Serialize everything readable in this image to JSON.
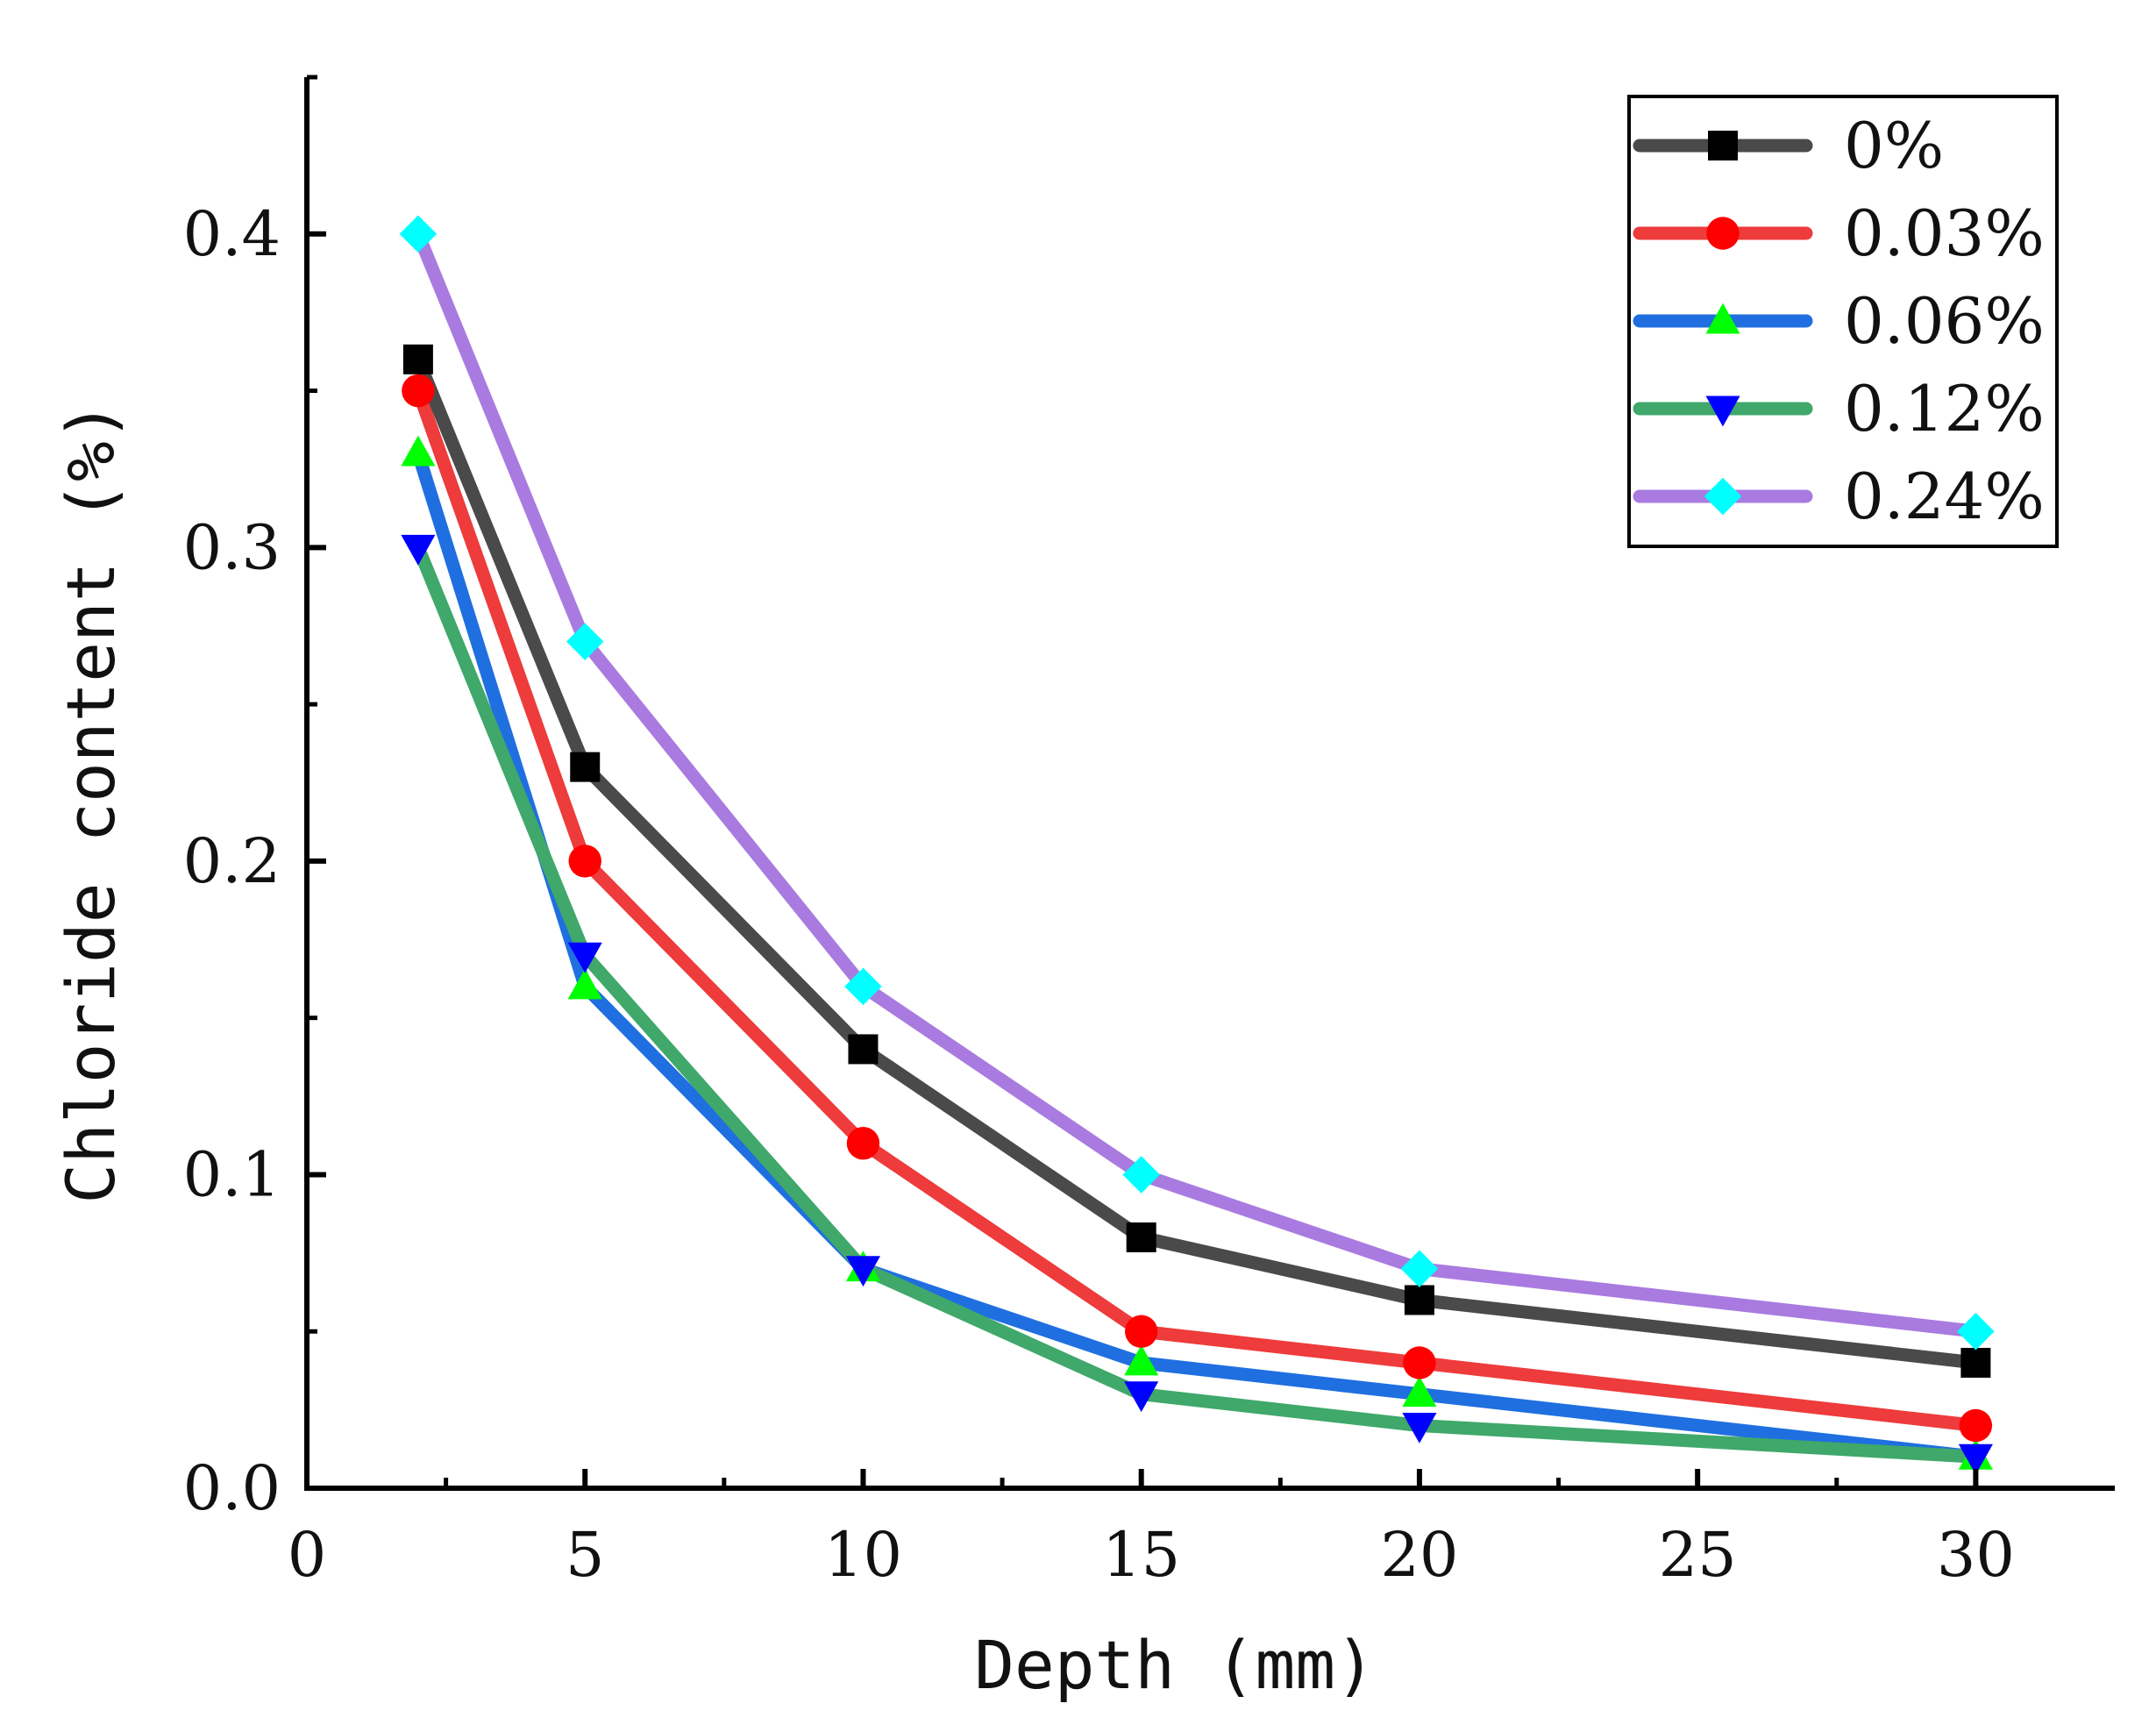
{
  "chart_data": {
    "type": "line",
    "title": "",
    "xlabel": "Depth (mm)",
    "ylabel": "Chloride content (%)",
    "xlim": [
      0,
      32.5
    ],
    "ylim": [
      0,
      0.45
    ],
    "xticks": [
      0,
      5,
      10,
      15,
      20,
      25,
      30
    ],
    "xtick_labels": [
      "0",
      "5",
      "10",
      "15",
      "20",
      "25",
      "30"
    ],
    "yticks": [
      0.0,
      0.1,
      0.2,
      0.3,
      0.4
    ],
    "ytick_labels": [
      "0.0",
      "0.1",
      "0.2",
      "0.3",
      "0.4"
    ],
    "grid": false,
    "legend_position": "top-right",
    "x": [
      2,
      5,
      10,
      15,
      20,
      30
    ],
    "series": [
      {
        "name": "0%",
        "values": [
          0.36,
          0.23,
          0.14,
          0.08,
          0.06,
          0.04
        ],
        "line_color": "#4a4a4a",
        "marker": "square",
        "marker_color": "#000000"
      },
      {
        "name": "0.03%",
        "values": [
          0.35,
          0.2,
          0.11,
          0.05,
          0.04,
          0.02
        ],
        "line_color": "#ee3b3b",
        "marker": "circle",
        "marker_color": "#ff0000"
      },
      {
        "name": "0.06%",
        "values": [
          0.33,
          0.16,
          0.07,
          0.04,
          0.03,
          0.01
        ],
        "line_color": "#1f6fe0",
        "marker": "triangle-up",
        "marker_color": "#00ff00"
      },
      {
        "name": "0.12%",
        "values": [
          0.3,
          0.17,
          0.07,
          0.03,
          0.02,
          0.01
        ],
        "line_color": "#3fa86a",
        "marker": "triangle-down",
        "marker_color": "#0000ff"
      },
      {
        "name": "0.24%",
        "values": [
          0.4,
          0.27,
          0.16,
          0.1,
          0.07,
          0.05
        ],
        "line_color": "#a97be0",
        "marker": "diamond",
        "marker_color": "#00ffff"
      }
    ]
  }
}
